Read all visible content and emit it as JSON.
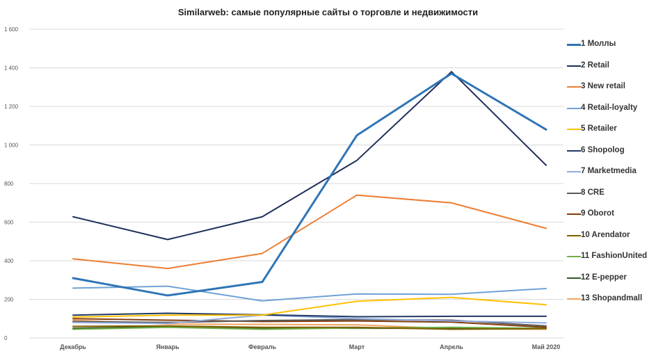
{
  "chart_data": {
    "type": "line",
    "title": "Similarweb: самые популярные сайты о торговле и недвижимости",
    "categories": [
      "Декабрь",
      "Январь",
      "Февраль",
      "Март",
      "Апрель",
      "Май 2020"
    ],
    "ylim": [
      0,
      1600
    ],
    "yticks": [
      0,
      200,
      400,
      600,
      800,
      1000,
      1200,
      1400,
      1600
    ],
    "ytick_labels": [
      "0",
      "200",
      "400",
      "600",
      "800",
      "1 000",
      "1 200",
      "1 400",
      "1 600"
    ],
    "xlabel": "",
    "ylabel": "",
    "grid": true,
    "legend_position": "right",
    "series": [
      {
        "name": "1 Моллы",
        "color": "#2E75B6",
        "width": 3,
        "values": [
          310,
          220,
          290,
          1050,
          1370,
          1080
        ]
      },
      {
        "name": "2 Retail",
        "color": "#1F2E5A",
        "width": 2,
        "values": [
          628,
          510,
          628,
          920,
          1380,
          895
        ]
      },
      {
        "name": "3 New retail",
        "color": "#ED7D31",
        "width": 2,
        "values": [
          410,
          360,
          438,
          740,
          700,
          568
        ]
      },
      {
        "name": "4 Retail-loyalty",
        "color": "#6FA1D6",
        "width": 2,
        "values": [
          258,
          268,
          192,
          228,
          226,
          256
        ]
      },
      {
        "name": "5 Retailer",
        "color": "#FFC000",
        "width": 2,
        "values": [
          108,
          118,
          118,
          190,
          210,
          172
        ]
      },
      {
        "name": "6 Shopolog",
        "color": "#203864",
        "width": 2,
        "values": [
          118,
          128,
          120,
          110,
          112,
          112
        ]
      },
      {
        "name": "7 Marketmedia",
        "color": "#8FAADC",
        "width": 2,
        "values": [
          80,
          75,
          118,
          100,
          88,
          78
        ]
      },
      {
        "name": "8 CRE",
        "color": "#595959",
        "width": 2,
        "values": [
          85,
          80,
          90,
          95,
          92,
          62
        ]
      },
      {
        "name": "9 Oborot",
        "color": "#843C0C",
        "width": 2,
        "values": [
          100,
          92,
          85,
          88,
          82,
          55
        ]
      },
      {
        "name": "10 Arendator",
        "color": "#7F6000",
        "width": 2,
        "values": [
          60,
          62,
          55,
          55,
          45,
          48
        ]
      },
      {
        "name": "11 FashionUnited",
        "color": "#70AD47",
        "width": 2,
        "values": [
          45,
          55,
          45,
          52,
          55,
          50
        ]
      },
      {
        "name": "12 E-pepper",
        "color": "#375623",
        "width": 2,
        "values": [
          50,
          58,
          52,
          50,
          50,
          50
        ]
      },
      {
        "name": "13 Shopandmall",
        "color": "#F4A460",
        "width": 2,
        "values": [
          92,
          72,
          70,
          68,
          48,
          45
        ]
      }
    ]
  }
}
